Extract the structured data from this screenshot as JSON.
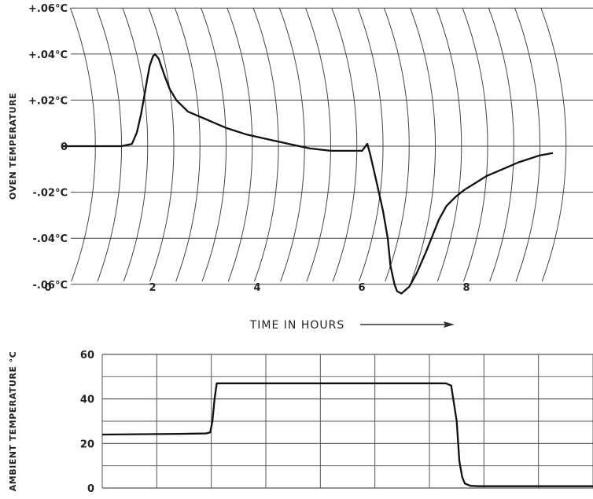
{
  "chart_data": [
    {
      "type": "line",
      "chart_style": "circular-arc strip-chart grid",
      "ylabel": "OVEN TEMPERATURE",
      "xlabel": "TIME IN HOURS",
      "x_ticks": [
        "0",
        "2",
        "4",
        "6",
        "8"
      ],
      "y_ticks": [
        "+.06°C",
        "+.04°C",
        "+.02°C",
        "0",
        "-.02°C",
        "-.04°C",
        "-.06°C"
      ],
      "ylim": [
        -0.06,
        0.06
      ],
      "xlim": [
        -0.15,
        9.25
      ],
      "grid": true,
      "series": [
        {
          "x": [
            -0.15,
            0.5,
            1.0,
            1.2,
            1.3,
            1.4,
            1.5,
            1.6,
            1.7,
            1.8,
            1.85,
            1.9,
            1.95,
            2.0,
            2.1,
            2.3,
            2.6,
            3.0,
            3.4,
            3.8,
            4.2,
            4.6,
            5.0,
            5.4,
            5.6,
            5.7,
            5.75,
            5.9,
            6.1,
            6.3,
            6.5,
            6.7,
            6.8,
            6.9,
            7.0,
            7.05,
            7.1,
            7.2,
            7.3,
            7.45,
            7.6,
            7.8,
            8.0,
            8.3,
            8.6,
            9.0,
            9.25
          ],
          "y": [
            0,
            0,
            0,
            0.001,
            0.006,
            0.014,
            0.022,
            0.029,
            0.035,
            0.039,
            0.04,
            0.038,
            0.03,
            0.025,
            0.02,
            0.015,
            0.012,
            0.008,
            0.005,
            0.003,
            0.001,
            -0.001,
            -0.002,
            -0.002,
            -0.002,
            0.001,
            -0.003,
            -0.015,
            -0.028,
            -0.04,
            -0.052,
            -0.06,
            -0.063,
            -0.064,
            -0.061,
            -0.055,
            -0.046,
            -0.032,
            -0.026,
            -0.022,
            -0.019,
            -0.016,
            -0.013,
            -0.01,
            -0.007,
            -0.004,
            -0.003
          ]
        }
      ]
    },
    {
      "type": "line",
      "ylabel": "AMBIENT TEMPERATURE °C",
      "y_ticks": [
        "60",
        "40",
        "20",
        "0"
      ],
      "ylim": [
        0,
        60
      ],
      "xlim": [
        0,
        9
      ],
      "grid": true,
      "series": [
        {
          "x": [
            0,
            1.4,
            1.9,
            1.98,
            2.02,
            2.06,
            2.1,
            3.0,
            4.0,
            5.0,
            6.2,
            6.3,
            6.4,
            6.5,
            6.55,
            6.6,
            6.65,
            6.75,
            6.9,
            7.5,
            8.5,
            9.0
          ],
          "y": [
            24,
            24.3,
            24.5,
            25,
            30,
            40,
            47,
            47,
            47,
            47,
            47,
            47,
            46,
            30,
            12,
            5,
            2,
            1,
            0.8,
            0.8,
            0.8,
            0.8
          ]
        }
      ]
    }
  ]
}
